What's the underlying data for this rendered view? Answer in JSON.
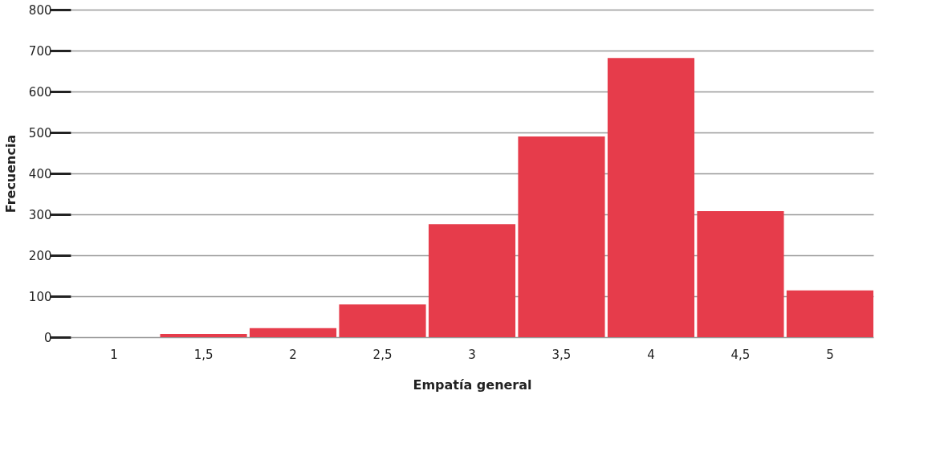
{
  "chart_data": {
    "type": "bar",
    "xlabel": "Empatía general",
    "ylabel": "Frecuencia",
    "categories": [
      "1",
      "1,5",
      "2",
      "2,5",
      "3",
      "3,5",
      "4",
      "4,5",
      "5"
    ],
    "values": [
      0,
      8,
      22,
      80,
      276,
      490,
      682,
      308,
      114
    ],
    "color": "#e63c4b",
    "ylim": [
      0,
      800
    ],
    "yticks": [
      0,
      100,
      200,
      300,
      400,
      500,
      600,
      700,
      800
    ],
    "grid": "y"
  }
}
